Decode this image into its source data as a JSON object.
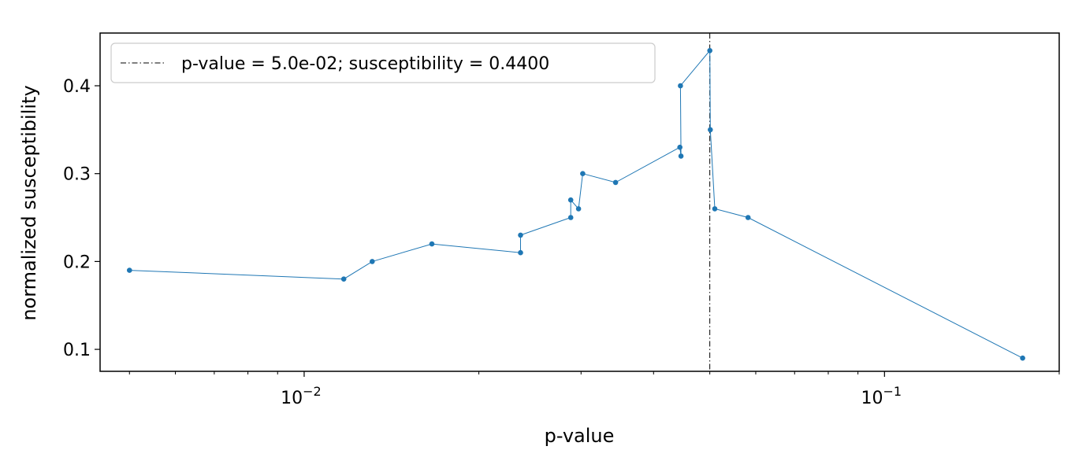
{
  "chart_data": {
    "type": "line",
    "xlabel": "p-value",
    "ylabel": "normalized susceptibility",
    "xscale": "log",
    "xlim": [
      0.00445,
      0.2
    ],
    "ylim": [
      0.075,
      0.46
    ],
    "grid": false,
    "legend_placement": "upper-left",
    "x_major_ticks": [
      {
        "value": 0.01,
        "base": "10",
        "exp": "−2"
      },
      {
        "value": 0.1,
        "base": "10",
        "exp": "−1"
      }
    ],
    "x_minor_ticks": [
      0.005,
      0.006,
      0.007,
      0.008,
      0.009,
      0.02,
      0.03,
      0.04,
      0.05,
      0.06,
      0.07,
      0.08,
      0.09,
      0.2
    ],
    "y_ticks": [
      {
        "value": 0.1,
        "label": "0.1"
      },
      {
        "value": 0.2,
        "label": "0.2"
      },
      {
        "value": 0.3,
        "label": "0.3"
      },
      {
        "value": 0.4,
        "label": "0.4"
      }
    ],
    "series": [
      {
        "color": "#1f77b4",
        "x": [
          0.005,
          0.0117,
          0.0131,
          0.0166,
          0.0236,
          0.0236,
          0.0288,
          0.0288,
          0.0297,
          0.0302,
          0.0344,
          0.0444,
          0.0446,
          0.0445,
          0.05,
          0.0501,
          0.051,
          0.0582,
          0.173
        ],
        "y": [
          0.19,
          0.18,
          0.2,
          0.22,
          0.21,
          0.23,
          0.25,
          0.27,
          0.26,
          0.3,
          0.29,
          0.33,
          0.32,
          0.4,
          0.44,
          0.35,
          0.26,
          0.25,
          0.09
        ]
      }
    ],
    "reference_line": {
      "x": 0.05,
      "color": "#000000",
      "label": "p-value = 5.0e-02; susceptibility = 0.4400"
    }
  }
}
